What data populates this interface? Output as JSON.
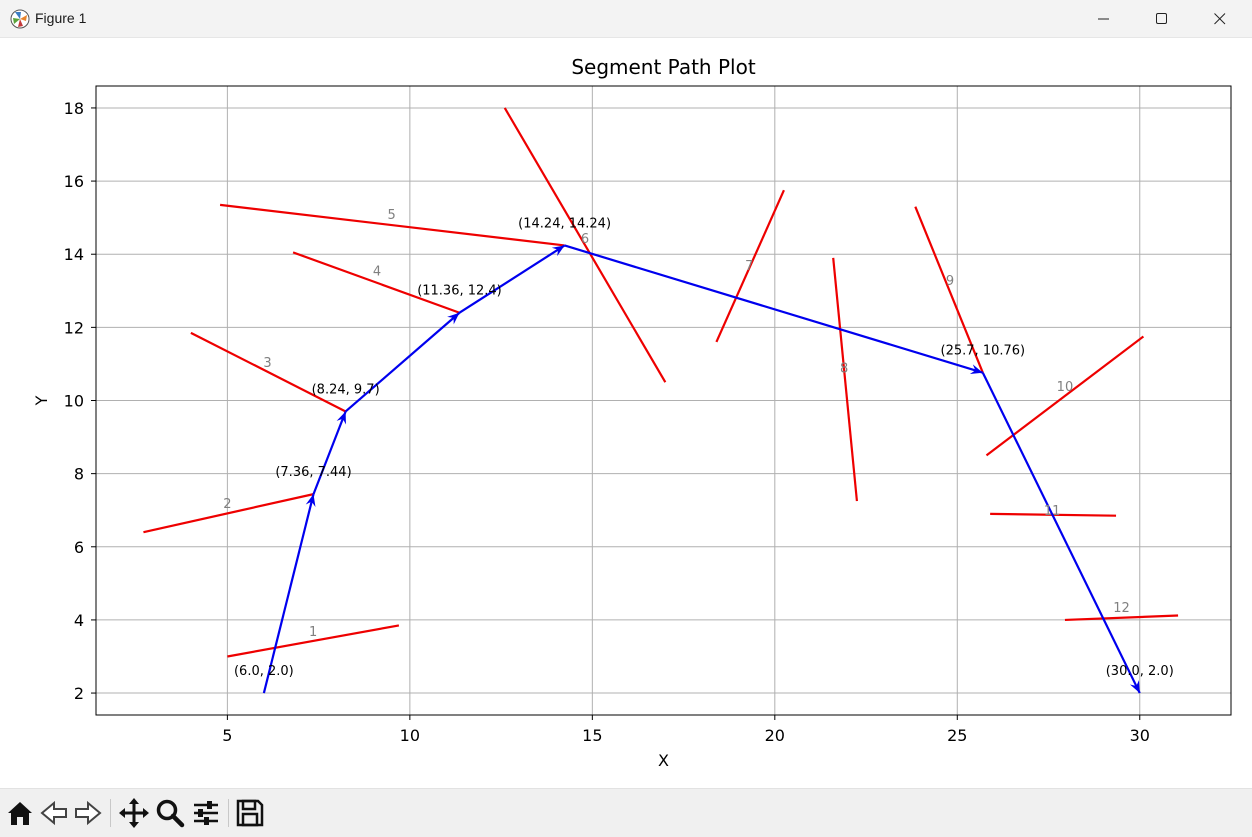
{
  "window": {
    "title": "Figure 1",
    "icons": [
      "matplotlib-icon",
      "minimize-icon",
      "maximize-icon",
      "close-icon"
    ]
  },
  "toolbar": {
    "buttons": [
      "home-icon",
      "back-icon",
      "forward-icon",
      "pan-icon",
      "zoom-icon",
      "configure-subplots-icon",
      "save-icon"
    ]
  },
  "chart_data": {
    "type": "line",
    "title": "Segment Path Plot",
    "xlabel": "X",
    "ylabel": "Y",
    "xlim": [
      1.4,
      32.5
    ],
    "ylim": [
      1.4,
      18.6
    ],
    "xticks": [
      5,
      10,
      15,
      20,
      25,
      30
    ],
    "yticks": [
      2,
      4,
      6,
      8,
      10,
      12,
      14,
      16,
      18
    ],
    "grid": true,
    "colors": {
      "path": "#0000ee",
      "segments": "#ee0000",
      "segment_labels": "#808080",
      "point_labels": "#000000"
    },
    "path": [
      {
        "x": 6.0,
        "y": 2.0,
        "label": "(6.0, 2.0)"
      },
      {
        "x": 7.36,
        "y": 7.44,
        "label": "(7.36, 7.44)"
      },
      {
        "x": 8.24,
        "y": 9.7,
        "label": "(8.24, 9.7)"
      },
      {
        "x": 11.36,
        "y": 12.4,
        "label": "(11.36, 12.4)"
      },
      {
        "x": 14.24,
        "y": 14.24,
        "label": "(14.24, 14.24)"
      },
      {
        "x": 25.7,
        "y": 10.76,
        "label": "(25.7, 10.76)"
      },
      {
        "x": 30.0,
        "y": 2.0,
        "label": "(30.0, 2.0)"
      }
    ],
    "segments": [
      {
        "label": "1",
        "x1": 5.0,
        "y1": 3.0,
        "x2": 9.7,
        "y2": 3.85,
        "lx": 7.35,
        "ly": 3.7
      },
      {
        "label": "2",
        "x1": 2.7,
        "y1": 6.4,
        "x2": 7.36,
        "y2": 7.44,
        "lx": 5.0,
        "ly": 7.2
      },
      {
        "label": "3",
        "x1": 4.0,
        "y1": 11.85,
        "x2": 8.24,
        "y2": 9.7,
        "lx": 6.1,
        "ly": 11.05
      },
      {
        "label": "4",
        "x1": 6.8,
        "y1": 14.05,
        "x2": 11.36,
        "y2": 12.4,
        "lx": 9.1,
        "ly": 13.55
      },
      {
        "label": "5",
        "x1": 4.8,
        "y1": 15.35,
        "x2": 14.24,
        "y2": 14.24,
        "lx": 9.5,
        "ly": 15.1
      },
      {
        "label": "6",
        "x1": 12.6,
        "y1": 18.0,
        "x2": 17.0,
        "y2": 10.5,
        "lx": 14.8,
        "ly": 14.45
      },
      {
        "label": "7",
        "x1": 18.4,
        "y1": 11.6,
        "x2": 20.25,
        "y2": 15.75,
        "lx": 19.3,
        "ly": 13.7
      },
      {
        "label": "8",
        "x1": 21.6,
        "y1": 13.9,
        "x2": 22.25,
        "y2": 7.25,
        "lx": 21.9,
        "ly": 10.9
      },
      {
        "label": "9",
        "x1": 23.85,
        "y1": 15.3,
        "x2": 25.7,
        "y2": 10.76,
        "lx": 24.8,
        "ly": 13.3
      },
      {
        "label": "10",
        "x1": 25.8,
        "y1": 8.5,
        "x2": 30.1,
        "y2": 11.75,
        "lx": 27.95,
        "ly": 10.4
      },
      {
        "label": "11",
        "x1": 25.9,
        "y1": 6.9,
        "x2": 29.35,
        "y2": 6.85,
        "lx": 27.6,
        "ly": 7.0
      },
      {
        "label": "12",
        "x1": 27.95,
        "y1": 4.0,
        "x2": 31.05,
        "y2": 4.12,
        "lx": 29.5,
        "ly": 4.35
      }
    ]
  }
}
